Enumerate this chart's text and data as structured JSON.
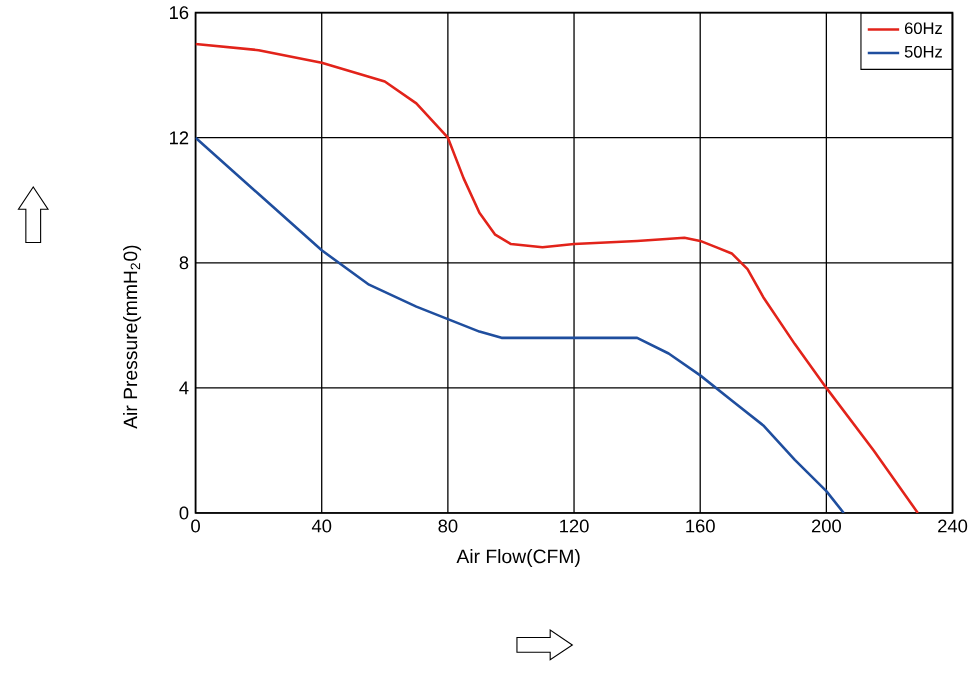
{
  "chart_data": {
    "type": "line",
    "xlabel": "Air Flow(CFM)",
    "ylabel": "Air Pressure(mmH$_{2}$0)",
    "xlim": [
      0,
      240
    ],
    "ylim": [
      0,
      16
    ],
    "xticks": [
      0,
      40,
      80,
      120,
      160,
      200,
      240
    ],
    "yticks": [
      0,
      4,
      8,
      12,
      16
    ],
    "grid": true,
    "legend": "top right",
    "series": [
      {
        "name": "60Hz",
        "color": "#e2231a",
        "x": [
          0,
          20,
          40,
          60,
          70,
          80,
          85,
          90,
          95,
          100,
          110,
          120,
          140,
          155,
          160,
          165,
          170,
          175,
          180,
          190,
          200,
          215,
          229
        ],
        "values": [
          15.0,
          14.8,
          14.4,
          13.8,
          13.1,
          12.0,
          10.7,
          9.6,
          8.9,
          8.6,
          8.5,
          8.6,
          8.7,
          8.8,
          8.7,
          8.5,
          8.3,
          7.8,
          6.9,
          5.4,
          4.0,
          2.0,
          0
        ]
      },
      {
        "name": "50Hz",
        "color": "#1f4e9e",
        "x": [
          0,
          20,
          40,
          55,
          70,
          80,
          90,
          97,
          120,
          140,
          150,
          160,
          170,
          180,
          190,
          200,
          205.5
        ],
        "values": [
          12.0,
          10.2,
          8.4,
          7.3,
          6.6,
          6.2,
          5.8,
          5.6,
          5.6,
          5.6,
          5.1,
          4.4,
          3.6,
          2.8,
          1.7,
          0.7,
          0
        ]
      }
    ]
  }
}
